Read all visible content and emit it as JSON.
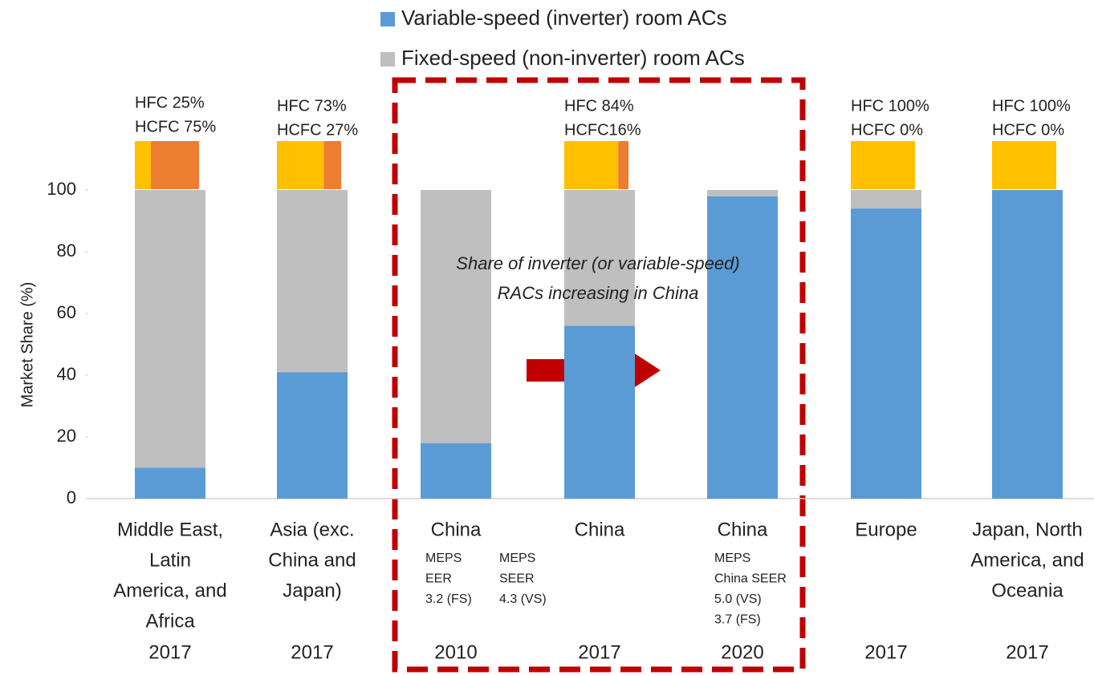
{
  "chart_data": {
    "type": "stacked_bar",
    "y_label": "Market Share (%)",
    "ylim": [
      0,
      100
    ],
    "yticks": [
      0,
      20,
      40,
      60,
      80,
      100
    ],
    "categories": [
      [
        "Middle East,",
        "Latin",
        "America, and",
        "Africa"
      ],
      [
        "Asia (exc.",
        "China and",
        "Japan)"
      ],
      [
        "China"
      ],
      [
        "China"
      ],
      [
        "China"
      ],
      [
        "Europe"
      ],
      [
        "Japan, North",
        "America, and",
        "Oceania"
      ]
    ],
    "years": [
      "2017",
      "2017",
      "2010",
      "2017",
      "2020",
      "2017",
      "2017"
    ],
    "series": [
      {
        "name": "Variable-speed (inverter) room ACs",
        "color": "#5B9BD5",
        "values": [
          10,
          41,
          18,
          56,
          98,
          94,
          100
        ]
      },
      {
        "name": "Fixed-speed (non-inverter) room ACs",
        "color": "#BFBFBF",
        "values": [
          90,
          59,
          82,
          44,
          2,
          6,
          0
        ]
      }
    ],
    "refrigerant_colors": {
      "hfc": "#FFC000",
      "hcfc": "#ED7D31"
    },
    "refrigerants": [
      {
        "hfc": 25,
        "hcfc": 75,
        "labels": [
          "HFC 25%",
          "HCFC 75%"
        ]
      },
      {
        "hfc": 73,
        "hcfc": 27,
        "labels": [
          "HFC 73%",
          "HCFC 27%"
        ]
      },
      null,
      {
        "hfc": 84,
        "hcfc": 16,
        "labels": [
          "HFC 84%",
          "HCFC16%"
        ]
      },
      null,
      {
        "hfc": 100,
        "hcfc": 0,
        "labels": [
          "HFC 100%",
          "HCFC 0%"
        ]
      },
      {
        "hfc": 100,
        "hcfc": 0,
        "labels": [
          "HFC 100%",
          "HCFC 0%"
        ]
      }
    ],
    "category_notes": [
      null,
      null,
      [
        [
          "MEPS",
          "EER",
          "3.2 (FS)"
        ],
        [
          "MEPS",
          "SEER",
          "4.3 (VS)"
        ]
      ],
      null,
      [
        [
          "MEPS",
          "China SEER",
          "5.0 (VS)",
          "3.7 (FS)"
        ]
      ],
      null,
      null
    ],
    "annotation": [
      "Share of inverter (or variable-speed)",
      "RACs increasing in China"
    ]
  }
}
